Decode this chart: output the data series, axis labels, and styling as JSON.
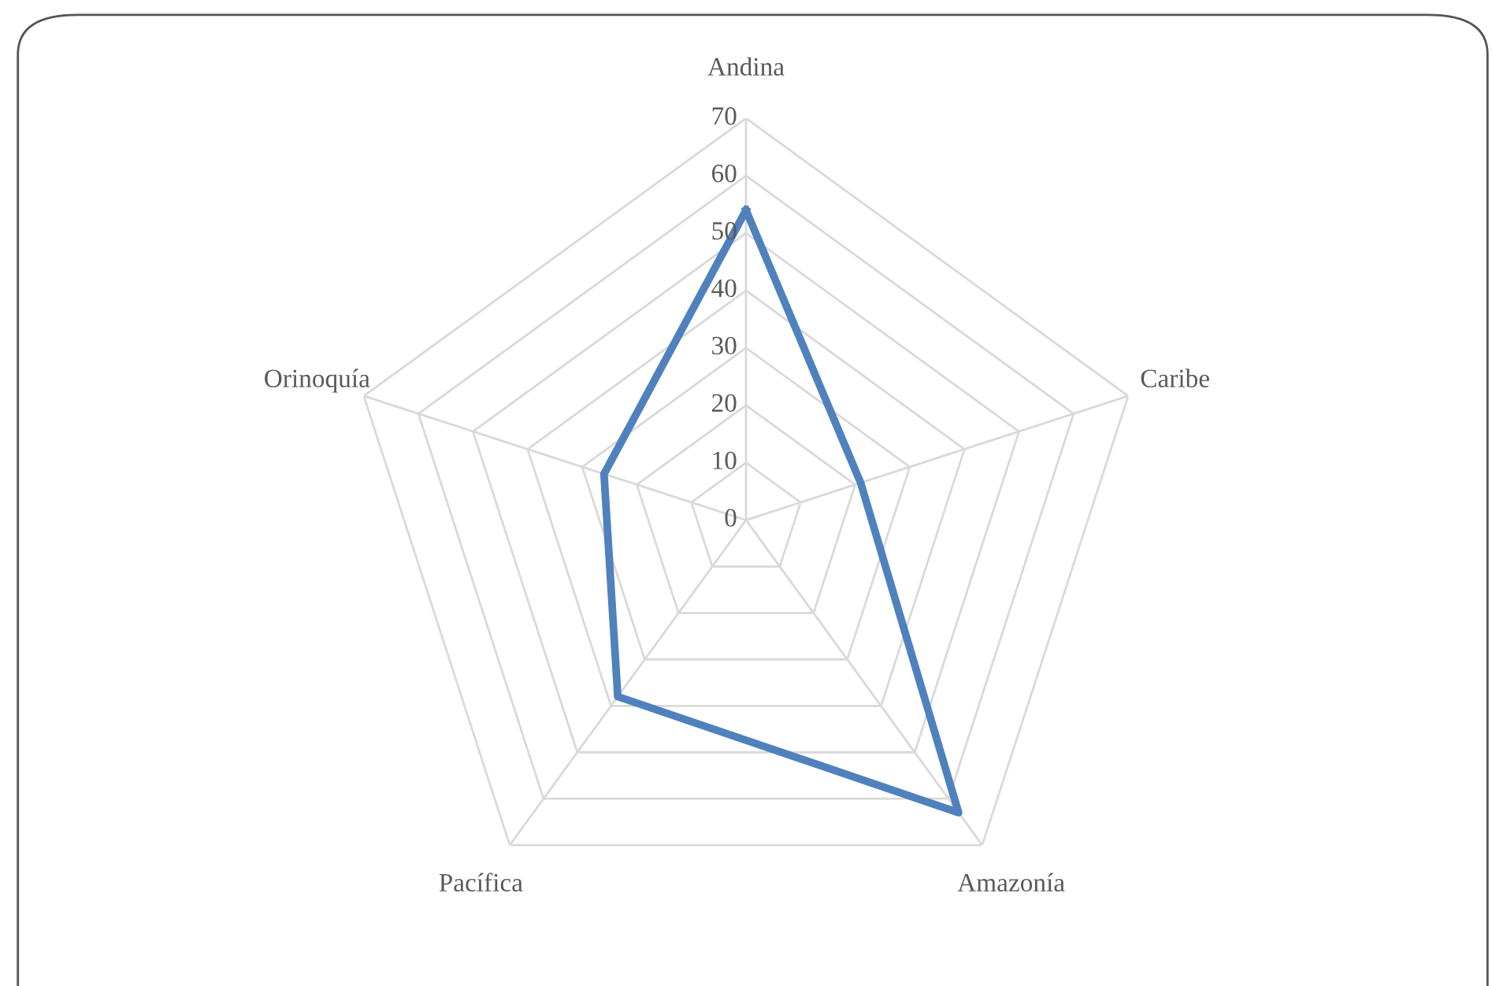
{
  "chart_data": {
    "type": "radar",
    "categories": [
      "Andina",
      "Caribe",
      "Amazonía",
      "Pacífica",
      "Orinoquía"
    ],
    "series": [
      {
        "color": "#4f81bd",
        "values": [
          54,
          21,
          63,
          38,
          26
        ]
      }
    ],
    "ylim": [
      0,
      70
    ],
    "yticks": [
      0,
      10,
      20,
      30,
      40,
      50,
      60,
      70
    ],
    "grid": true
  }
}
